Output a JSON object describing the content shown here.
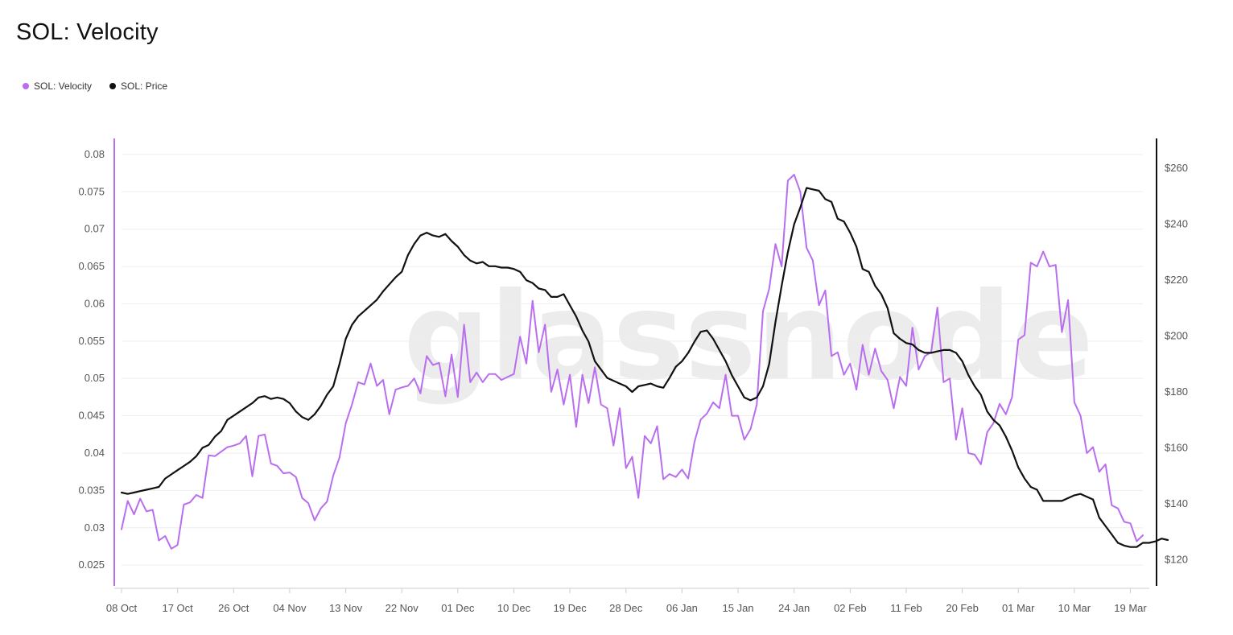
{
  "page": {
    "title": "SOL: Velocity",
    "watermark": "glassnode"
  },
  "legend": [
    {
      "label": "SOL: Velocity",
      "color": "#b96ef0"
    },
    {
      "label": "SOL: Price",
      "color": "#111111"
    }
  ],
  "chart_data": {
    "type": "line",
    "title": "SOL: Velocity",
    "x_tick_labels": [
      "08 Oct",
      "17 Oct",
      "26 Oct",
      "04 Nov",
      "13 Nov",
      "22 Nov",
      "01 Dec",
      "10 Dec",
      "19 Dec",
      "28 Dec",
      "06 Jan",
      "15 Jan",
      "24 Jan",
      "02 Feb",
      "11 Feb",
      "20 Feb",
      "01 Mar",
      "10 Mar",
      "19 Mar"
    ],
    "x_tick_day_index": [
      0,
      9,
      18,
      27,
      36,
      45,
      54,
      63,
      72,
      81,
      90,
      99,
      108,
      117,
      126,
      135,
      144,
      153,
      162
    ],
    "y_left": {
      "ticks": [
        0.025,
        0.03,
        0.035,
        0.04,
        0.045,
        0.05,
        0.055,
        0.06,
        0.065,
        0.07,
        0.075,
        0.08
      ],
      "tick_labels": [
        "0.025",
        "0.03",
        "0.035",
        "0.04",
        "0.045",
        "0.05",
        "0.055",
        "0.06",
        "0.065",
        "0.07",
        "0.075",
        "0.08"
      ],
      "range": [
        0.022,
        0.0815
      ]
    },
    "y_right": {
      "ticks": [
        120,
        140,
        160,
        180,
        200,
        220,
        240,
        260
      ],
      "tick_labels": [
        "$120",
        "$140",
        "$160",
        "$180",
        "$200",
        "$220",
        "$240",
        "$260"
      ],
      "range": [
        110,
        269
      ]
    },
    "grid": true,
    "legend_position": "top-left",
    "series": [
      {
        "name": "SOL: Velocity",
        "axis": "left",
        "color": "#b96ef0",
        "values": [
          0.0298,
          0.0336,
          0.0318,
          0.0339,
          0.0322,
          0.0324,
          0.0283,
          0.0289,
          0.0272,
          0.0277,
          0.0331,
          0.0334,
          0.0344,
          0.034,
          0.0397,
          0.0396,
          0.0402,
          0.0408,
          0.041,
          0.0413,
          0.0423,
          0.0369,
          0.0423,
          0.0425,
          0.0386,
          0.0383,
          0.0373,
          0.0374,
          0.0368,
          0.034,
          0.0333,
          0.031,
          0.0326,
          0.0335,
          0.037,
          0.0394,
          0.044,
          0.0465,
          0.0495,
          0.0492,
          0.052,
          0.049,
          0.0498,
          0.0452,
          0.0485,
          0.0488,
          0.049,
          0.05,
          0.048,
          0.053,
          0.0518,
          0.0521,
          0.0476,
          0.0532,
          0.0475,
          0.0572,
          0.0495,
          0.0508,
          0.0495,
          0.0506,
          0.0506,
          0.0498,
          0.0502,
          0.0506,
          0.0556,
          0.052,
          0.0604,
          0.0535,
          0.0572,
          0.0482,
          0.0512,
          0.0465,
          0.0505,
          0.0435,
          0.0505,
          0.0467,
          0.0515,
          0.0465,
          0.046,
          0.041,
          0.046,
          0.038,
          0.0395,
          0.034,
          0.0423,
          0.0413,
          0.0436,
          0.0365,
          0.0372,
          0.0368,
          0.0378,
          0.0366,
          0.0415,
          0.0445,
          0.0453,
          0.0468,
          0.046,
          0.0505,
          0.045,
          0.045,
          0.0418,
          0.0432,
          0.0465,
          0.059,
          0.062,
          0.068,
          0.065,
          0.0765,
          0.0773,
          0.075,
          0.0675,
          0.0658,
          0.0598,
          0.0618,
          0.053,
          0.0535,
          0.0505,
          0.052,
          0.0485,
          0.0545,
          0.0505,
          0.054,
          0.051,
          0.0498,
          0.046,
          0.0502,
          0.049,
          0.0568,
          0.0512,
          0.053,
          0.0535,
          0.0595,
          0.0495,
          0.05,
          0.0418,
          0.046,
          0.04,
          0.0398,
          0.0385,
          0.0428,
          0.044,
          0.0466,
          0.0452,
          0.0475,
          0.0552,
          0.0558,
          0.0655,
          0.065,
          0.067,
          0.065,
          0.0652,
          0.0562,
          0.0605,
          0.0468,
          0.045,
          0.04,
          0.0408,
          0.0375,
          0.0385,
          0.033,
          0.0326,
          0.0308,
          0.0306,
          0.0282,
          0.029
        ]
      },
      {
        "name": "SOL: Price",
        "axis": "right",
        "color": "#111111",
        "values": [
          144,
          143.5,
          144,
          144.5,
          145,
          145.5,
          146,
          149,
          150.5,
          152,
          153.5,
          155,
          157,
          160,
          161,
          164,
          166,
          170,
          171.5,
          173,
          174.5,
          176,
          178,
          178.5,
          177.5,
          178,
          177.5,
          176,
          173,
          171,
          170,
          172,
          175,
          179,
          182,
          190,
          199,
          204,
          207,
          209,
          211,
          213,
          216,
          218.5,
          221,
          223,
          229,
          233,
          236,
          237,
          236,
          235.5,
          236.5,
          234,
          232,
          229,
          227,
          226,
          226.5,
          225,
          225,
          224.5,
          224.5,
          224,
          223,
          220,
          219,
          217,
          216.5,
          214,
          214,
          215,
          211,
          207,
          202,
          198,
          191,
          188,
          185,
          184,
          183,
          182,
          180,
          182,
          182.5,
          183,
          182,
          181.5,
          185,
          189,
          191,
          194,
          198,
          201.5,
          202,
          199,
          195,
          191,
          186,
          182,
          178,
          177,
          178,
          182,
          190,
          205,
          218,
          230,
          240,
          246,
          253,
          252.5,
          252,
          249,
          248,
          242,
          241,
          237,
          232,
          224,
          223,
          218,
          215,
          210,
          201,
          199,
          197.5,
          197,
          195,
          194,
          194,
          194.5,
          195,
          195,
          194,
          191,
          186,
          182,
          179,
          173,
          170,
          168,
          164,
          159,
          153,
          149,
          146,
          145,
          141,
          141,
          141,
          141,
          142,
          143,
          143.5,
          142.5,
          141.5,
          135,
          132,
          129,
          126,
          125,
          124.5,
          124.5,
          126,
          126,
          126.5,
          127.5,
          127
        ]
      }
    ]
  }
}
